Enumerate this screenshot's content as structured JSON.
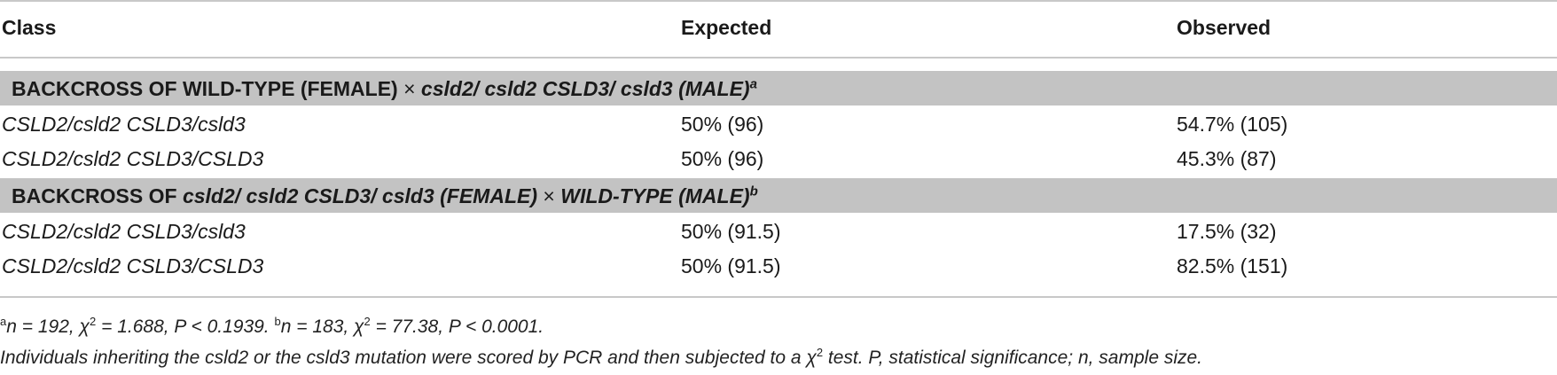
{
  "table": {
    "headers": [
      "Class",
      "Expected",
      "Observed"
    ],
    "groups": [
      {
        "title_prefix": "BACKCROSS OF WILD-TYPE (FEMALE)",
        "times": "×",
        "title_suffix": "csld2/ csld2 CSLD3/ csld3 (MALE)",
        "footnote_mark": "a",
        "rows": [
          [
            "CSLD2/csld2 CSLD3/csld3",
            "50% (96)",
            "54.7% (105)"
          ],
          [
            "CSLD2/csld2 CSLD3/CSLD3",
            "50% (96)",
            "45.3% (87)"
          ]
        ]
      },
      {
        "title_prefix": "BACKCROSS OF",
        "title_italic": "csld2/ csld2 CSLD3/ csld3 (FEMALE)",
        "times": "×",
        "title_suffix": "WILD-TYPE (MALE)",
        "footnote_mark": "b",
        "rows": [
          [
            "CSLD2/csld2 CSLD3/csld3",
            "50% (91.5)",
            "17.5% (32)"
          ],
          [
            "CSLD2/csld2 CSLD3/CSLD3",
            "50% (91.5)",
            "82.5% (151)"
          ]
        ]
      }
    ]
  },
  "footnotes": {
    "a_mark": "a",
    "a_text": "n = 192, χ",
    "a_exp": "2",
    "a_tail": " = 1.688, P < 0.1939. ",
    "b_mark": "b",
    "b_text": "n = 183, χ",
    "b_exp": "2",
    "b_tail": " = 77.38, P < 0.0001.",
    "line2_text": "Individuals inheriting the csld2 or the csld3 mutation were scored by PCR and then subjected to a χ",
    "line2_exp": "2",
    "line2_tail": " test. P, statistical significance; n, sample size."
  }
}
